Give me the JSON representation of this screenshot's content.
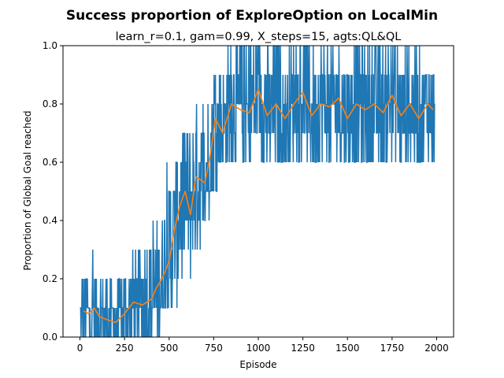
{
  "chart_data": {
    "type": "line",
    "title": "Success proportion of ExploreOption on LocalMin",
    "subtitle": "learn_r=0.1, gam=0.99, X_steps=15, agts:QL&QL",
    "xlabel": "Episode",
    "ylabel": "Proportion of Global Goal reached",
    "xlim": [
      -95,
      2095
    ],
    "ylim": [
      0,
      1
    ],
    "xticks": [
      0,
      250,
      500,
      750,
      1000,
      1250,
      1500,
      1750,
      2000
    ],
    "yticks": [
      0.0,
      0.2,
      0.4,
      0.6,
      0.8,
      1.0
    ],
    "grid": false,
    "series": [
      {
        "color": "#1f77b4",
        "style": "raw-oscillating",
        "x_range": [
          0,
          1990
        ],
        "band_x": [
          0,
          100,
          200,
          300,
          400,
          500,
          600,
          700,
          800,
          900,
          1000,
          1100,
          1200,
          1300,
          1400,
          1500,
          1600,
          1700,
          1800,
          1900,
          1990
        ],
        "band_low": [
          0.0,
          0.0,
          0.0,
          0.0,
          0.0,
          0.1,
          0.2,
          0.4,
          0.6,
          0.6,
          0.6,
          0.6,
          0.6,
          0.6,
          0.6,
          0.6,
          0.6,
          0.6,
          0.6,
          0.6,
          0.6
        ],
        "band_high": [
          0.2,
          0.3,
          0.2,
          0.3,
          0.4,
          0.6,
          0.7,
          0.8,
          1.0,
          1.0,
          1.0,
          1.0,
          1.0,
          1.0,
          1.0,
          1.0,
          1.0,
          1.0,
          1.0,
          1.0,
          0.9
        ]
      },
      {
        "color": "#ff7f0e",
        "style": "moving-average",
        "x": [
          20,
          50,
          80,
          110,
          150,
          200,
          250,
          300,
          350,
          400,
          430,
          460,
          500,
          530,
          560,
          590,
          620,
          650,
          700,
          730,
          760,
          800,
          850,
          900,
          950,
          1000,
          1050,
          1100,
          1150,
          1200,
          1250,
          1300,
          1350,
          1400,
          1450,
          1500,
          1550,
          1600,
          1650,
          1700,
          1750,
          1800,
          1850,
          1900,
          1950,
          1980
        ],
        "y": [
          0.09,
          0.08,
          0.1,
          0.07,
          0.06,
          0.05,
          0.08,
          0.12,
          0.11,
          0.13,
          0.17,
          0.2,
          0.26,
          0.37,
          0.45,
          0.5,
          0.42,
          0.55,
          0.53,
          0.62,
          0.75,
          0.7,
          0.8,
          0.78,
          0.77,
          0.85,
          0.76,
          0.8,
          0.75,
          0.8,
          0.84,
          0.76,
          0.8,
          0.79,
          0.82,
          0.75,
          0.8,
          0.78,
          0.8,
          0.77,
          0.83,
          0.76,
          0.8,
          0.75,
          0.8,
          0.78
        ]
      }
    ]
  }
}
